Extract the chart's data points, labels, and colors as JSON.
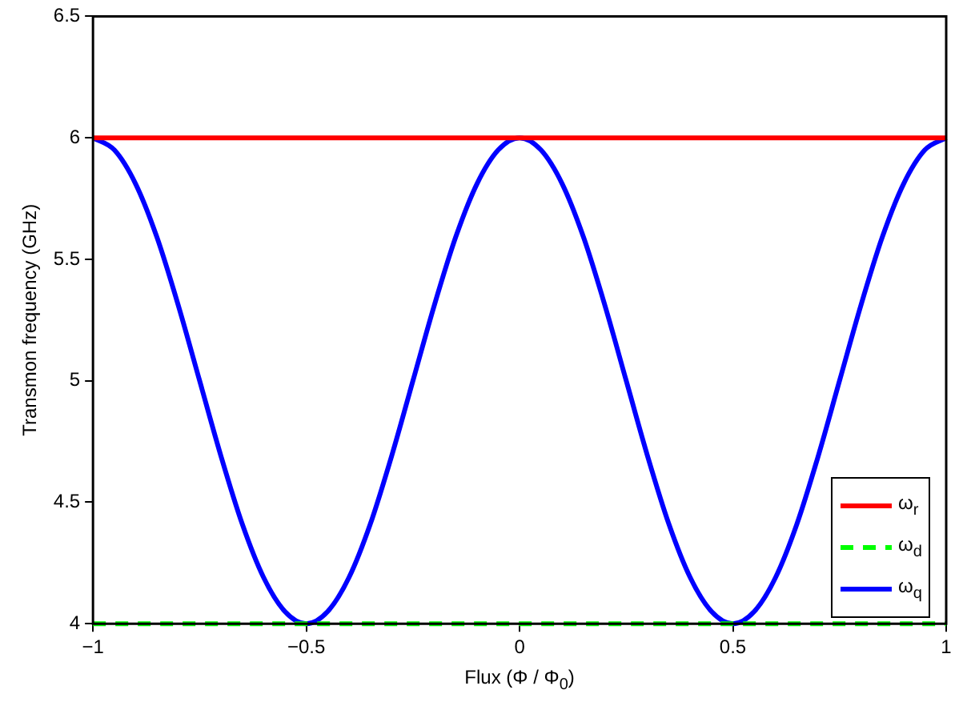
{
  "chart_data": {
    "type": "line",
    "xlabel": "Flux (Φ / Φ$_{0}$)",
    "ylabel": "Transmon frequency (GHz)",
    "xlim": [
      -1,
      1
    ],
    "xticks": [
      {
        "value": -1,
        "label": "−1"
      },
      {
        "value": -0.5,
        "label": "−0.5"
      },
      0,
      0.5,
      1
    ],
    "ylim": [
      4,
      6.5
    ],
    "yticks": [
      4,
      4.5,
      5,
      5.5,
      6,
      6.5
    ],
    "grid": false,
    "legend": "bottom right",
    "marker": "none",
    "series": [
      {
        "name": "ω$_{r}$",
        "color": "#ff0000",
        "line_style": "solid",
        "x": [
          -1,
          1
        ],
        "values": [
          6,
          6
        ]
      },
      {
        "name": "ω$_{d}$",
        "color": "#00ff00",
        "line_style": "dashed",
        "x": [
          -1,
          1
        ],
        "values": [
          4,
          4
        ]
      },
      {
        "name": "ω$_{q}$",
        "color": "#0000ff",
        "line_style": "solid",
        "x": [
          -1,
          -0.95,
          -0.9,
          -0.85,
          -0.8,
          -0.75,
          -0.7,
          -0.65,
          -0.6,
          -0.55,
          -0.5,
          -0.45,
          -0.4,
          -0.35,
          -0.3,
          -0.25,
          -0.2,
          -0.15,
          -0.1,
          -0.05,
          0,
          0.05,
          0.1,
          0.15,
          0.2,
          0.25,
          0.3,
          0.35,
          0.4,
          0.45,
          0.5,
          0.55,
          0.6,
          0.65,
          0.7,
          0.75,
          0.8,
          0.85,
          0.9,
          0.95,
          1
        ],
        "values": [
          6,
          5.95,
          5.81,
          5.59,
          5.31,
          5,
          4.69,
          4.41,
          4.19,
          4.05,
          4,
          4.05,
          4.19,
          4.41,
          4.69,
          5,
          5.31,
          5.59,
          5.81,
          5.95,
          6,
          5.95,
          5.81,
          5.59,
          5.31,
          5,
          4.69,
          4.41,
          4.19,
          4.05,
          4,
          4.05,
          4.19,
          4.41,
          4.69,
          5,
          5.31,
          5.59,
          5.81,
          5.95,
          6
        ]
      }
    ]
  }
}
